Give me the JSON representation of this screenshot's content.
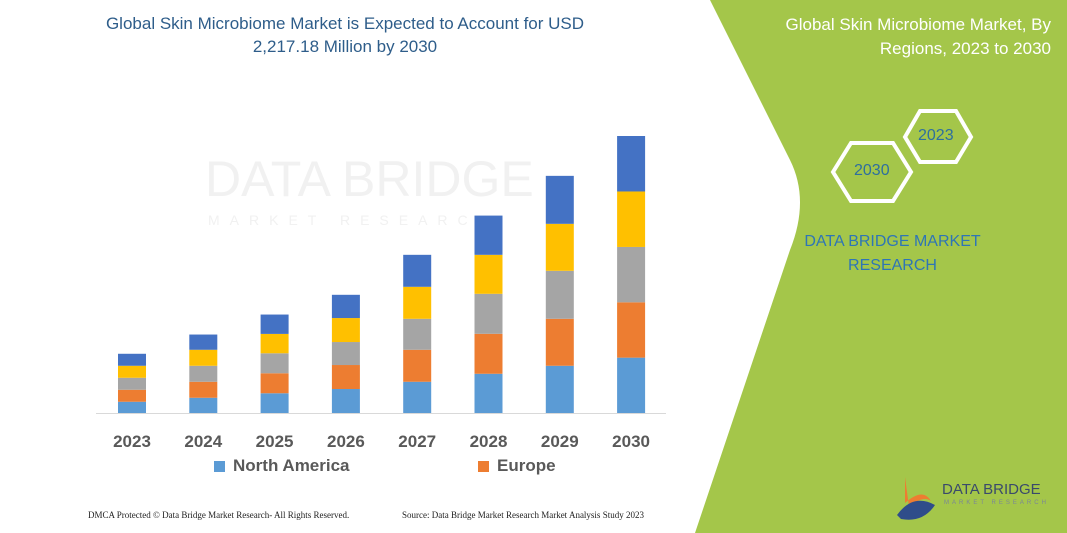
{
  "header": {
    "title_line1": "Global Skin Microbiome Market is Expected to Account for USD",
    "title_line2": "2,217.18 Million by 2030"
  },
  "side_panel": {
    "title_line1": "Global Skin Microbiome Market, By",
    "title_line2": "Regions, 2023 to 2030",
    "hex_start": "2023",
    "hex_end": "2030",
    "brand_line1": "DATA BRIDGE MARKET",
    "brand_line2": "RESEARCH",
    "logo_text": "DATA BRIDGE",
    "logo_sub": "MARKET RESEARCH",
    "panel_color": "#a4c64a"
  },
  "watermark": {
    "line1": "DATA BRIDGE",
    "line2": "MARKET RESEARCH"
  },
  "footer": {
    "left": "DMCA Protected © Data Bridge Market Research-  All Rights Reserved.",
    "right": "Source: Data Bridge Market Research  Market Analysis Study 2023"
  },
  "chart_data": {
    "type": "bar",
    "stacked": true,
    "title": "Global Skin Microbiome Market is Expected to Account for USD 2,217.18 Million by 2030",
    "categories": [
      "2023",
      "2024",
      "2025",
      "2026",
      "2027",
      "2028",
      "2029",
      "2030"
    ],
    "series": [
      {
        "name": "North America",
        "color": "#5b9bd5",
        "values": [
          90,
          122,
          158,
          192,
          250,
          314,
          378,
          443
        ]
      },
      {
        "name": "Europe",
        "color": "#ed7d31",
        "values": [
          96,
          128,
          160,
          192,
          256,
          320,
          376,
          443
        ]
      },
      {
        "color": "#a5a5a5",
        "values": [
          96,
          128,
          160,
          184,
          248,
          320,
          384,
          443
        ]
      },
      {
        "color": "#ffc000",
        "values": [
          96,
          128,
          155,
          192,
          256,
          312,
          376,
          444
        ]
      },
      {
        "color": "#4472c4",
        "values": [
          96,
          122,
          155,
          186,
          256,
          314,
          384,
          444
        ]
      }
    ],
    "xlabel": "",
    "ylabel": "",
    "y_axis_visible": false,
    "grid": false,
    "legend": "bottom"
  }
}
